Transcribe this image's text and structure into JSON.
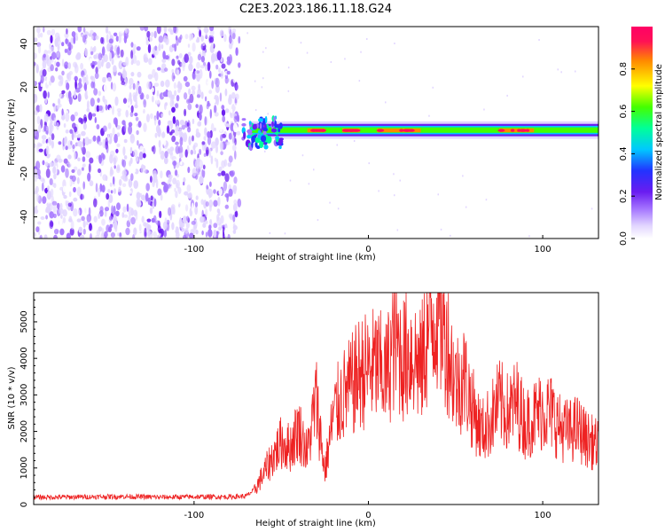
{
  "page": {
    "title": "C2E3.2023.186.11.18.G24"
  },
  "colors": {
    "snr_line": "#ee2222",
    "axis": "#000000",
    "background": "#ffffff",
    "colormap": [
      "#ffffff",
      "#e2d6ff",
      "#a474ff",
      "#6a1cf0",
      "#2233ff",
      "#00c8ff",
      "#00ff99",
      "#44ff00",
      "#ffff00",
      "#ff8800",
      "#ff1155",
      "#ff0066"
    ]
  },
  "chart_data": [
    {
      "type": "heatmap",
      "title": "",
      "xlabel": "Height of straight line (km)",
      "ylabel": "Frequency (Hz)",
      "xlim": [
        -192,
        132
      ],
      "ylim": [
        -50,
        48
      ],
      "xticks": [
        "-100",
        "0",
        "100"
      ],
      "xtick_values": [
        -100,
        0,
        100
      ],
      "yticks": [
        "40",
        "20",
        "0",
        "-20",
        "-40"
      ],
      "ytick_values": [
        40,
        20,
        0,
        -20,
        -40
      ],
      "colorbar": {
        "label": "Normalized spectral amplitude",
        "range": [
          0,
          1
        ],
        "ticks": [
          "0.0",
          "0.2",
          "0.4",
          "0.6",
          "0.8"
        ],
        "tick_values": [
          0.0,
          0.2,
          0.4,
          0.6,
          0.8
        ]
      },
      "features": {
        "noise_region_x": [
          -192,
          -74
        ],
        "signal_band_start_x": -72,
        "signal_band_freq_hz": 0,
        "signal_band_width_hz": [
          -3,
          3
        ],
        "peak_amplitude_x": [
          [
            -35,
            -25
          ],
          [
            -15,
            -5
          ],
          [
            5,
            30
          ],
          [
            75,
            95
          ]
        ]
      }
    },
    {
      "type": "line",
      "title": "",
      "xlabel": "Height of straight line (km)",
      "ylabel": "SNR (10 * v/v)",
      "xlim": [
        -192,
        132
      ],
      "ylim": [
        0,
        5800
      ],
      "xticks": [
        "-100",
        "0",
        "100"
      ],
      "xtick_values": [
        -100,
        0,
        100
      ],
      "yticks": [
        "0",
        "1000",
        "2000",
        "3000",
        "4000",
        "5000"
      ],
      "ytick_values": [
        0,
        1000,
        2000,
        3000,
        4000,
        5000
      ],
      "series": [
        {
          "x": [
            -192,
            -180,
            -160,
            -140,
            -120,
            -100,
            -80,
            -70,
            -65,
            -60,
            -55,
            -50,
            -45,
            -40,
            -35,
            -30,
            -25,
            -20,
            -15,
            -10,
            -5,
            0,
            5,
            10,
            15,
            20,
            25,
            30,
            35,
            40,
            45,
            50,
            55,
            60,
            65,
            70,
            75,
            80,
            85,
            90,
            95,
            100,
            105,
            110,
            115,
            120,
            125,
            132
          ],
          "y": [
            200,
            200,
            210,
            220,
            200,
            210,
            210,
            230,
            420,
            850,
            1300,
            1700,
            1550,
            2100,
            1400,
            2900,
            900,
            2450,
            2950,
            3200,
            3600,
            3700,
            3800,
            3500,
            4500,
            4000,
            4200,
            3700,
            4900,
            5400,
            4500,
            3300,
            3500,
            2600,
            2000,
            2300,
            2800,
            2500,
            2800,
            2200,
            2400,
            2600,
            2500,
            2100,
            2000,
            2100,
            1800,
            1600
          ]
        }
      ]
    }
  ]
}
